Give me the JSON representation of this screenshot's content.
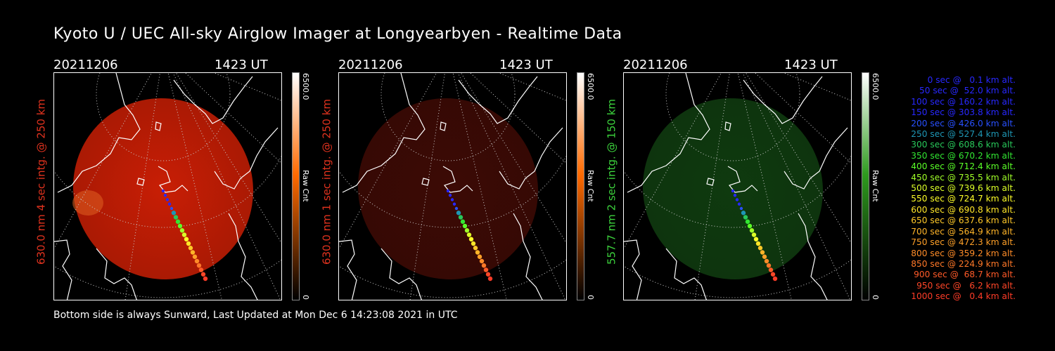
{
  "title": "Kyoto U / UEC All-sky Airglow Imager at Longyearbyen - Realtime Data",
  "footer": "Bottom side is always Sunward, Last Updated at Mon Dec  6 14:23:08 2021 in UTC",
  "panels": [
    {
      "date": "20211206",
      "time": "1423 UT",
      "side_label": "630.0 nm 4 sec intg. @ 250 km",
      "label_color": "#e0321e",
      "cbar_max": "6500.0",
      "cbar_min": "0",
      "cbar_unit": "Raw Cnt",
      "cbar_color": "#ff6a00",
      "glow_color": "#c81e05",
      "glow_strength": 0.85
    },
    {
      "date": "20211206",
      "time": "1423 UT",
      "side_label": "630.0 nm 1 sec intg. @ 250 km",
      "label_color": "#e0321e",
      "cbar_max": "6500.0",
      "cbar_min": "0",
      "cbar_unit": "Raw Cnt",
      "cbar_color": "#ff6a00",
      "glow_color": "#3c0a05",
      "glow_strength": 0.9
    },
    {
      "date": "20211206",
      "time": "1423 UT",
      "side_label": "557.7 nm 2 sec intg. @ 150 km",
      "label_color": "#3cd23c",
      "cbar_max": "6500.0",
      "cbar_min": "0",
      "cbar_unit": "Raw Cnt",
      "cbar_color": "#2e9a1e",
      "glow_color": "#0f3a0f",
      "glow_strength": 0.9
    }
  ],
  "legend": [
    {
      "text": "0 sec @   0.1 km alt.",
      "color": "#2828ff"
    },
    {
      "text": "50 sec @  52.0 km alt.",
      "color": "#2828ff"
    },
    {
      "text": "100 sec @ 160.2 km alt.",
      "color": "#2828ff"
    },
    {
      "text": "150 sec @ 303.8 km alt.",
      "color": "#2828ff"
    },
    {
      "text": "200 sec @ 426.0 km alt.",
      "color": "#2850ff"
    },
    {
      "text": "250 sec @ 527.4 km alt.",
      "color": "#1e96b4"
    },
    {
      "text": "300 sec @ 608.6 km alt.",
      "color": "#28c85a"
    },
    {
      "text": "350 sec @ 670.2 km alt.",
      "color": "#32e632"
    },
    {
      "text": "400 sec @ 712.4 km alt.",
      "color": "#5aff28"
    },
    {
      "text": "450 sec @ 735.5 km alt.",
      "color": "#a0ff28"
    },
    {
      "text": "500 sec @ 739.6 km alt.",
      "color": "#dcff28"
    },
    {
      "text": "550 sec @ 724.7 km alt.",
      "color": "#ffff28"
    },
    {
      "text": "600 sec @ 690.8 km alt.",
      "color": "#ffe628"
    },
    {
      "text": "650 sec @ 637.6 km alt.",
      "color": "#ffc828"
    },
    {
      "text": "700 sec @ 564.9 km alt.",
      "color": "#ffb428"
    },
    {
      "text": "750 sec @ 472.3 km alt.",
      "color": "#ffa028"
    },
    {
      "text": "800 sec @ 359.2 km alt.",
      "color": "#ff8c28"
    },
    {
      "text": "850 sec @ 224.9 km alt.",
      "color": "#ff7828"
    },
    {
      "text": "900 sec @  68.7 km alt.",
      "color": "#ff5a28"
    },
    {
      "text": "950 sec @   6.2 km alt.",
      "color": "#ff4628"
    },
    {
      "text": "1000 sec @   0.4 km alt.",
      "color": "#ff3c28"
    }
  ]
}
